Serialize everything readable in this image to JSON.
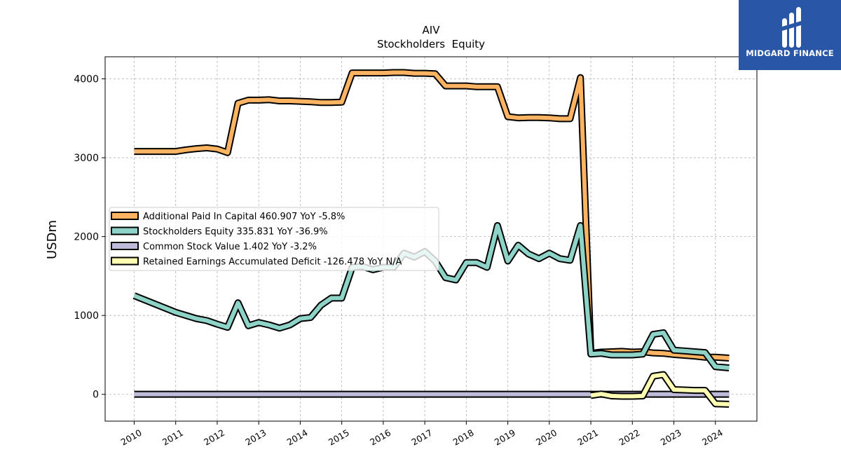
{
  "logo": {
    "text": "MIDGARD FINANCE",
    "background": "#2a56a8"
  },
  "chart_data": {
    "type": "line",
    "title": "AIV",
    "subtitle": "Stockholders  Equity",
    "xlabel": "",
    "ylabel": "USDm",
    "xlim": [
      2009.3,
      2025.0
    ],
    "ylim": [
      -340,
      4280
    ],
    "xticks": [
      "2010",
      "2011",
      "2012",
      "2013",
      "2014",
      "2015",
      "2016",
      "2017",
      "2018",
      "2019",
      "2020",
      "2021",
      "2022",
      "2023",
      "2024"
    ],
    "yticks": [
      0,
      1000,
      2000,
      3000,
      4000
    ],
    "grid": true,
    "legend_position": "center-left",
    "series": [
      {
        "name": "Additional Paid In Capital  460.907 YoY -5.8%",
        "color": "#fdb462",
        "x": [
          2010.0,
          2011.0,
          2011.25,
          2011.5,
          2011.75,
          2012.0,
          2012.25,
          2012.5,
          2012.75,
          2013.0,
          2013.25,
          2013.5,
          2013.75,
          2014.0,
          2014.25,
          2014.5,
          2014.75,
          2015.0,
          2015.25,
          2015.5,
          2015.75,
          2016.0,
          2016.25,
          2016.5,
          2016.75,
          2017.0,
          2017.25,
          2017.5,
          2017.75,
          2018.0,
          2018.25,
          2018.5,
          2018.75,
          2019.0,
          2019.25,
          2019.5,
          2019.75,
          2020.0,
          2020.25,
          2020.5,
          2020.75,
          2021.0,
          2021.25,
          2021.5,
          2021.75,
          2022.0,
          2022.25,
          2022.5,
          2022.75,
          2023.0,
          2023.25,
          2023.5,
          2023.75,
          2024.0,
          2024.33
        ],
        "y": [
          3080,
          3080,
          3100,
          3115,
          3125,
          3110,
          3065,
          3690,
          3730,
          3730,
          3735,
          3720,
          3720,
          3715,
          3710,
          3700,
          3700,
          3705,
          4075,
          4075,
          4075,
          4075,
          4080,
          4080,
          4070,
          4070,
          4065,
          3910,
          3910,
          3910,
          3900,
          3900,
          3900,
          3520,
          3505,
          3510,
          3510,
          3505,
          3495,
          3495,
          4015,
          520,
          535,
          540,
          545,
          535,
          540,
          525,
          520,
          505,
          495,
          485,
          470,
          470,
          460
        ]
      },
      {
        "name": "Stockholders Equity  335.831 YoY -36.9%",
        "color": "#8dd3c7",
        "x": [
          2010.0,
          2011.0,
          2011.25,
          2011.5,
          2011.75,
          2012.0,
          2012.25,
          2012.5,
          2012.75,
          2013.0,
          2013.25,
          2013.5,
          2013.75,
          2014.0,
          2014.25,
          2014.5,
          2014.75,
          2015.0,
          2015.25,
          2015.5,
          2015.75,
          2016.0,
          2016.25,
          2016.5,
          2016.75,
          2017.0,
          2017.25,
          2017.5,
          2017.75,
          2018.0,
          2018.25,
          2018.5,
          2018.75,
          2019.0,
          2019.25,
          2019.5,
          2019.75,
          2020.0,
          2020.25,
          2020.5,
          2020.75,
          2021.0,
          2021.25,
          2021.5,
          2021.75,
          2022.0,
          2022.25,
          2022.5,
          2022.75,
          2023.0,
          2023.25,
          2023.5,
          2023.75,
          2024.0,
          2024.33
        ],
        "y": [
          1250,
          1040,
          1000,
          960,
          935,
          890,
          850,
          1160,
          870,
          910,
          880,
          840,
          880,
          960,
          975,
          1130,
          1220,
          1220,
          1610,
          1620,
          1580,
          1610,
          1610,
          1790,
          1740,
          1810,
          1690,
          1480,
          1450,
          1670,
          1670,
          1610,
          2140,
          1690,
          1890,
          1780,
          1720,
          1790,
          1720,
          1700,
          2140,
          510,
          520,
          500,
          500,
          500,
          510,
          760,
          780,
          560,
          550,
          540,
          530,
          350,
          335
        ]
      },
      {
        "name": "Common Stock Value  1.402 YoY -3.2%",
        "color": "#bebada",
        "x": [
          2010.0,
          2024.33
        ],
        "y": [
          1.5,
          1.4
        ]
      },
      {
        "name": "Retained Earnings Accumulated Deficit  -126.478 YoY N/A",
        "color": "#ffffb3",
        "x": [
          2021.0,
          2021.25,
          2021.5,
          2021.75,
          2022.0,
          2022.25,
          2022.5,
          2022.75,
          2023.0,
          2023.25,
          2023.5,
          2023.75,
          2024.0,
          2024.33
        ],
        "y": [
          -15,
          5,
          -20,
          -25,
          -25,
          -20,
          230,
          250,
          60,
          55,
          50,
          50,
          -120,
          -126
        ]
      }
    ]
  }
}
